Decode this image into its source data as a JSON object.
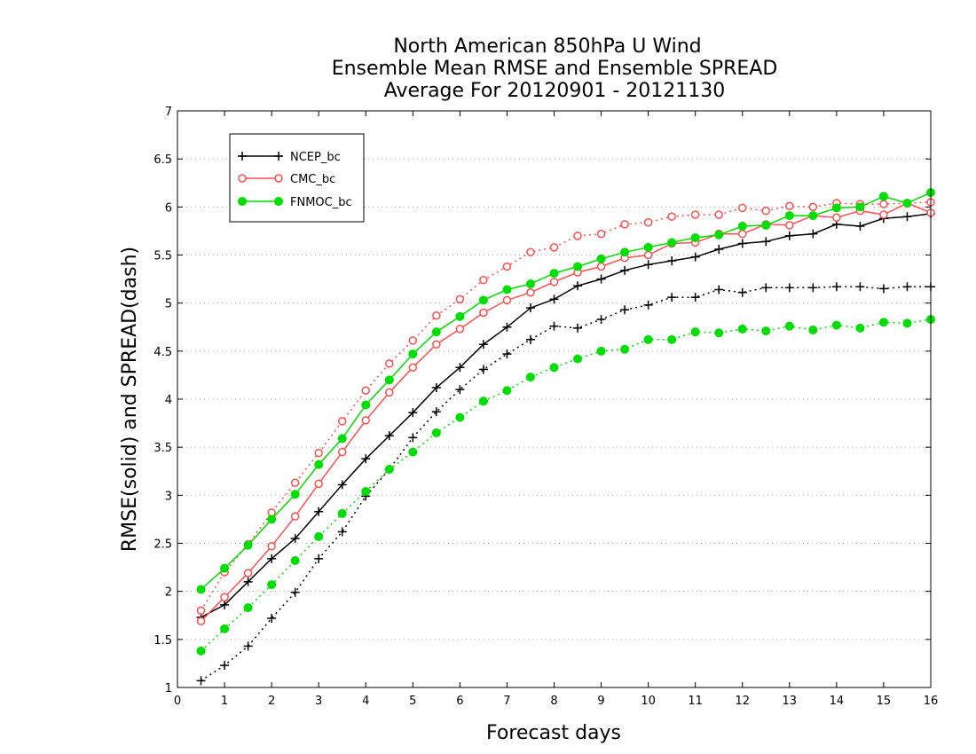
{
  "chart_data": {
    "type": "line",
    "title_lines": [
      "North American 850hPa U Wind",
      "Ensemble Mean RMSE and Ensemble SPREAD",
      "Average For 20120901 - 20121130"
    ],
    "xlabel": "Forecast days",
    "ylabel": "RMSE(solid) and SPREAD(dash)",
    "xlim": [
      0,
      16
    ],
    "ylim": [
      1,
      7
    ],
    "xticks": [
      "0",
      "1",
      "2",
      "3",
      "4",
      "5",
      "6",
      "7",
      "8",
      "9",
      "10",
      "11",
      "12",
      "13",
      "14",
      "15",
      "16"
    ],
    "yticks": [
      "1",
      "1.5",
      "2",
      "2.5",
      "3",
      "3.5",
      "4",
      "4.5",
      "5",
      "5.5",
      "6",
      "6.5",
      "7"
    ],
    "grid": true,
    "legend_position": "top-left",
    "legend": [
      "NCEP_bc",
      "CMC_bc",
      "FNMOC_bc"
    ],
    "x": [
      0.5,
      1,
      1.5,
      2,
      2.5,
      3,
      3.5,
      4,
      4.5,
      5,
      5.5,
      6,
      6.5,
      7,
      7.5,
      8,
      8.5,
      9,
      9.5,
      10,
      10.5,
      11,
      11.5,
      12,
      12.5,
      13,
      13.5,
      14,
      14.5,
      15,
      15.5,
      16
    ],
    "series": [
      {
        "name": "NCEP_bc",
        "kind": "rmse",
        "color": "#000000",
        "marker": "plus",
        "dash": "solid",
        "values": [
          1.73,
          1.86,
          2.1,
          2.34,
          2.55,
          2.83,
          3.11,
          3.38,
          3.62,
          3.86,
          4.12,
          4.33,
          4.57,
          4.75,
          4.95,
          5.04,
          5.18,
          5.25,
          5.34,
          5.4,
          5.44,
          5.48,
          5.56,
          5.62,
          5.64,
          5.7,
          5.72,
          5.82,
          5.8,
          5.88,
          5.9,
          5.93
        ]
      },
      {
        "name": "NCEP_bc",
        "kind": "spread",
        "color": "#000000",
        "marker": "plus",
        "dash": "dot",
        "values": [
          1.07,
          1.23,
          1.43,
          1.72,
          1.99,
          2.34,
          2.62,
          2.99,
          3.27,
          3.6,
          3.87,
          4.1,
          4.31,
          4.47,
          4.62,
          4.76,
          4.74,
          4.83,
          4.93,
          4.98,
          5.06,
          5.06,
          5.14,
          5.11,
          5.16,
          5.16,
          5.16,
          5.17,
          5.17,
          5.15,
          5.17,
          5.17
        ]
      },
      {
        "name": "CMC_bc",
        "kind": "rmse",
        "color": "#ff5050",
        "marker": "open-circle",
        "dash": "solid",
        "values": [
          1.69,
          1.94,
          2.19,
          2.47,
          2.78,
          3.12,
          3.45,
          3.78,
          4.07,
          4.33,
          4.57,
          4.73,
          4.9,
          5.03,
          5.11,
          5.22,
          5.32,
          5.38,
          5.47,
          5.5,
          5.62,
          5.63,
          5.72,
          5.72,
          5.82,
          5.81,
          5.91,
          5.89,
          5.96,
          5.92,
          6.04,
          5.94
        ]
      },
      {
        "name": "CMC_bc",
        "kind": "spread",
        "color": "#ff5050",
        "marker": "open-circle",
        "dash": "dot",
        "values": [
          1.8,
          2.2,
          2.49,
          2.82,
          3.13,
          3.44,
          3.77,
          4.09,
          4.37,
          4.61,
          4.87,
          5.04,
          5.24,
          5.38,
          5.53,
          5.58,
          5.7,
          5.72,
          5.82,
          5.84,
          5.9,
          5.92,
          5.92,
          5.99,
          5.96,
          6.01,
          6.0,
          6.04,
          6.03,
          6.03,
          6.04,
          6.05
        ]
      },
      {
        "name": "FNMOC_bc",
        "kind": "rmse",
        "color": "#00dd00",
        "marker": "filled-circle",
        "dash": "solid",
        "values": [
          2.02,
          2.24,
          2.48,
          2.75,
          3.01,
          3.32,
          3.59,
          3.94,
          4.2,
          4.47,
          4.7,
          4.86,
          5.03,
          5.14,
          5.2,
          5.31,
          5.38,
          5.46,
          5.53,
          5.58,
          5.63,
          5.68,
          5.71,
          5.8,
          5.81,
          5.91,
          5.91,
          5.99,
          6.0,
          6.11,
          6.04,
          6.15
        ]
      },
      {
        "name": "FNMOC_bc",
        "kind": "spread",
        "color": "#00dd00",
        "marker": "filled-circle",
        "dash": "dot",
        "values": [
          1.38,
          1.61,
          1.83,
          2.07,
          2.32,
          2.57,
          2.81,
          3.04,
          3.27,
          3.45,
          3.65,
          3.81,
          3.98,
          4.09,
          4.23,
          4.33,
          4.42,
          4.5,
          4.52,
          4.62,
          4.62,
          4.7,
          4.69,
          4.73,
          4.71,
          4.76,
          4.72,
          4.77,
          4.74,
          4.8,
          4.79,
          4.83
        ]
      }
    ]
  }
}
